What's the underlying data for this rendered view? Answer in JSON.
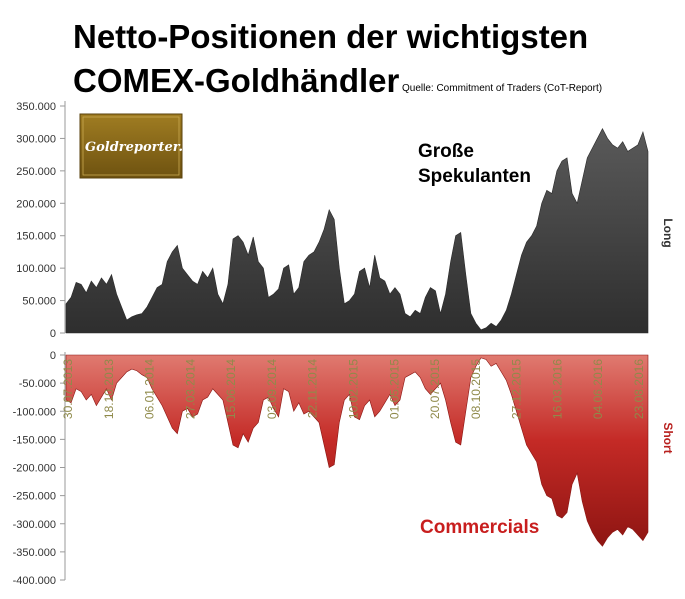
{
  "title_line1": "Netto-Positionen der wichtigsten",
  "title_line2": "COMEX-Goldhändler",
  "source": "Quelle: Commitment of Traders (CoT-Report)",
  "logo_text": "Goldreporter.de",
  "label_long": "Long",
  "label_short": "Short",
  "annotation_speculators_line1": "Große",
  "annotation_speculators_line2": "Spekulanten",
  "annotation_commercials": "Commercials",
  "colors": {
    "speculators_fill": "#404040",
    "commercials_fill": "#b8201e",
    "commercials_fill_light": "#d86a60",
    "date_labels": "#8f8a4a",
    "logo_bg": "#8b6a16"
  },
  "chart_data": [
    {
      "type": "area",
      "name": "Große Spekulanten",
      "ylabel": "Long",
      "ylim": [
        0,
        350000
      ],
      "yticks": [
        "0",
        "50.000",
        "100.000",
        "150.000",
        "200.000",
        "250.000",
        "300.000",
        "350.000"
      ],
      "grid": false,
      "values": [
        45000,
        55000,
        78000,
        75000,
        62000,
        80000,
        70000,
        85000,
        75000,
        90000,
        60000,
        40000,
        20000,
        25000,
        28000,
        30000,
        40000,
        55000,
        70000,
        75000,
        110000,
        125000,
        135000,
        100000,
        90000,
        80000,
        75000,
        95000,
        85000,
        100000,
        60000,
        45000,
        75000,
        145000,
        150000,
        140000,
        120000,
        148000,
        110000,
        100000,
        55000,
        60000,
        68000,
        100000,
        105000,
        60000,
        70000,
        110000,
        120000,
        125000,
        140000,
        160000,
        190000,
        175000,
        100000,
        45000,
        50000,
        60000,
        95000,
        100000,
        70000,
        120000,
        85000,
        80000,
        60000,
        70000,
        60000,
        30000,
        25000,
        35000,
        30000,
        55000,
        70000,
        65000,
        30000,
        60000,
        110000,
        150000,
        155000,
        90000,
        30000,
        15000,
        5000,
        8000,
        15000,
        10000,
        20000,
        35000,
        60000,
        90000,
        120000,
        140000,
        150000,
        165000,
        200000,
        220000,
        215000,
        250000,
        265000,
        270000,
        215000,
        200000,
        235000,
        270000,
        285000,
        300000,
        315000,
        300000,
        290000,
        285000,
        295000,
        280000,
        285000,
        290000,
        310000,
        280000
      ]
    },
    {
      "type": "area",
      "name": "Commercials",
      "ylabel": "Short",
      "ylim": [
        -400000,
        0
      ],
      "yticks": [
        "0",
        "-50.000",
        "-100.000",
        "-150.000",
        "-200.000",
        "-250.000",
        "-300.000",
        "-350.000",
        "-400.000"
      ],
      "grid": false,
      "x_tick_labels": [
        "30.07.2013",
        "18.10.2013",
        "06.01.2014",
        "27.03.2014",
        "15.06.2014",
        "03.09.2014",
        "22.11.2014",
        "10.02.2015",
        "01.05.2015",
        "20.07.2015",
        "08.10.2015",
        "27.12.2015",
        "16.03.2016",
        "04.06.2016",
        "23.08.2016"
      ],
      "values": [
        -80000,
        -85000,
        -60000,
        -65000,
        -80000,
        -70000,
        -90000,
        -75000,
        -60000,
        -80000,
        -50000,
        -40000,
        -30000,
        -25000,
        -28000,
        -35000,
        -40000,
        -60000,
        -75000,
        -90000,
        -110000,
        -130000,
        -140000,
        -100000,
        -95000,
        -110000,
        -105000,
        -80000,
        -75000,
        -60000,
        -70000,
        -80000,
        -120000,
        -160000,
        -165000,
        -140000,
        -155000,
        -130000,
        -120000,
        -80000,
        -75000,
        -95000,
        -110000,
        -60000,
        -65000,
        -100000,
        -85000,
        -105000,
        -100000,
        -110000,
        -120000,
        -160000,
        -200000,
        -195000,
        -120000,
        -80000,
        -70000,
        -110000,
        -115000,
        -90000,
        -80000,
        -110000,
        -100000,
        -85000,
        -70000,
        -90000,
        -80000,
        -40000,
        -35000,
        -30000,
        -40000,
        -60000,
        -70000,
        -60000,
        -50000,
        -80000,
        -120000,
        -155000,
        -160000,
        -100000,
        -40000,
        -20000,
        -5000,
        -8000,
        -20000,
        -15000,
        -30000,
        -45000,
        -70000,
        -100000,
        -130000,
        -160000,
        -175000,
        -190000,
        -230000,
        -250000,
        -255000,
        -285000,
        -290000,
        -280000,
        -230000,
        -210000,
        -260000,
        -295000,
        -315000,
        -330000,
        -340000,
        -325000,
        -315000,
        -310000,
        -320000,
        -305000,
        -310000,
        -320000,
        -330000,
        -315000
      ]
    }
  ]
}
